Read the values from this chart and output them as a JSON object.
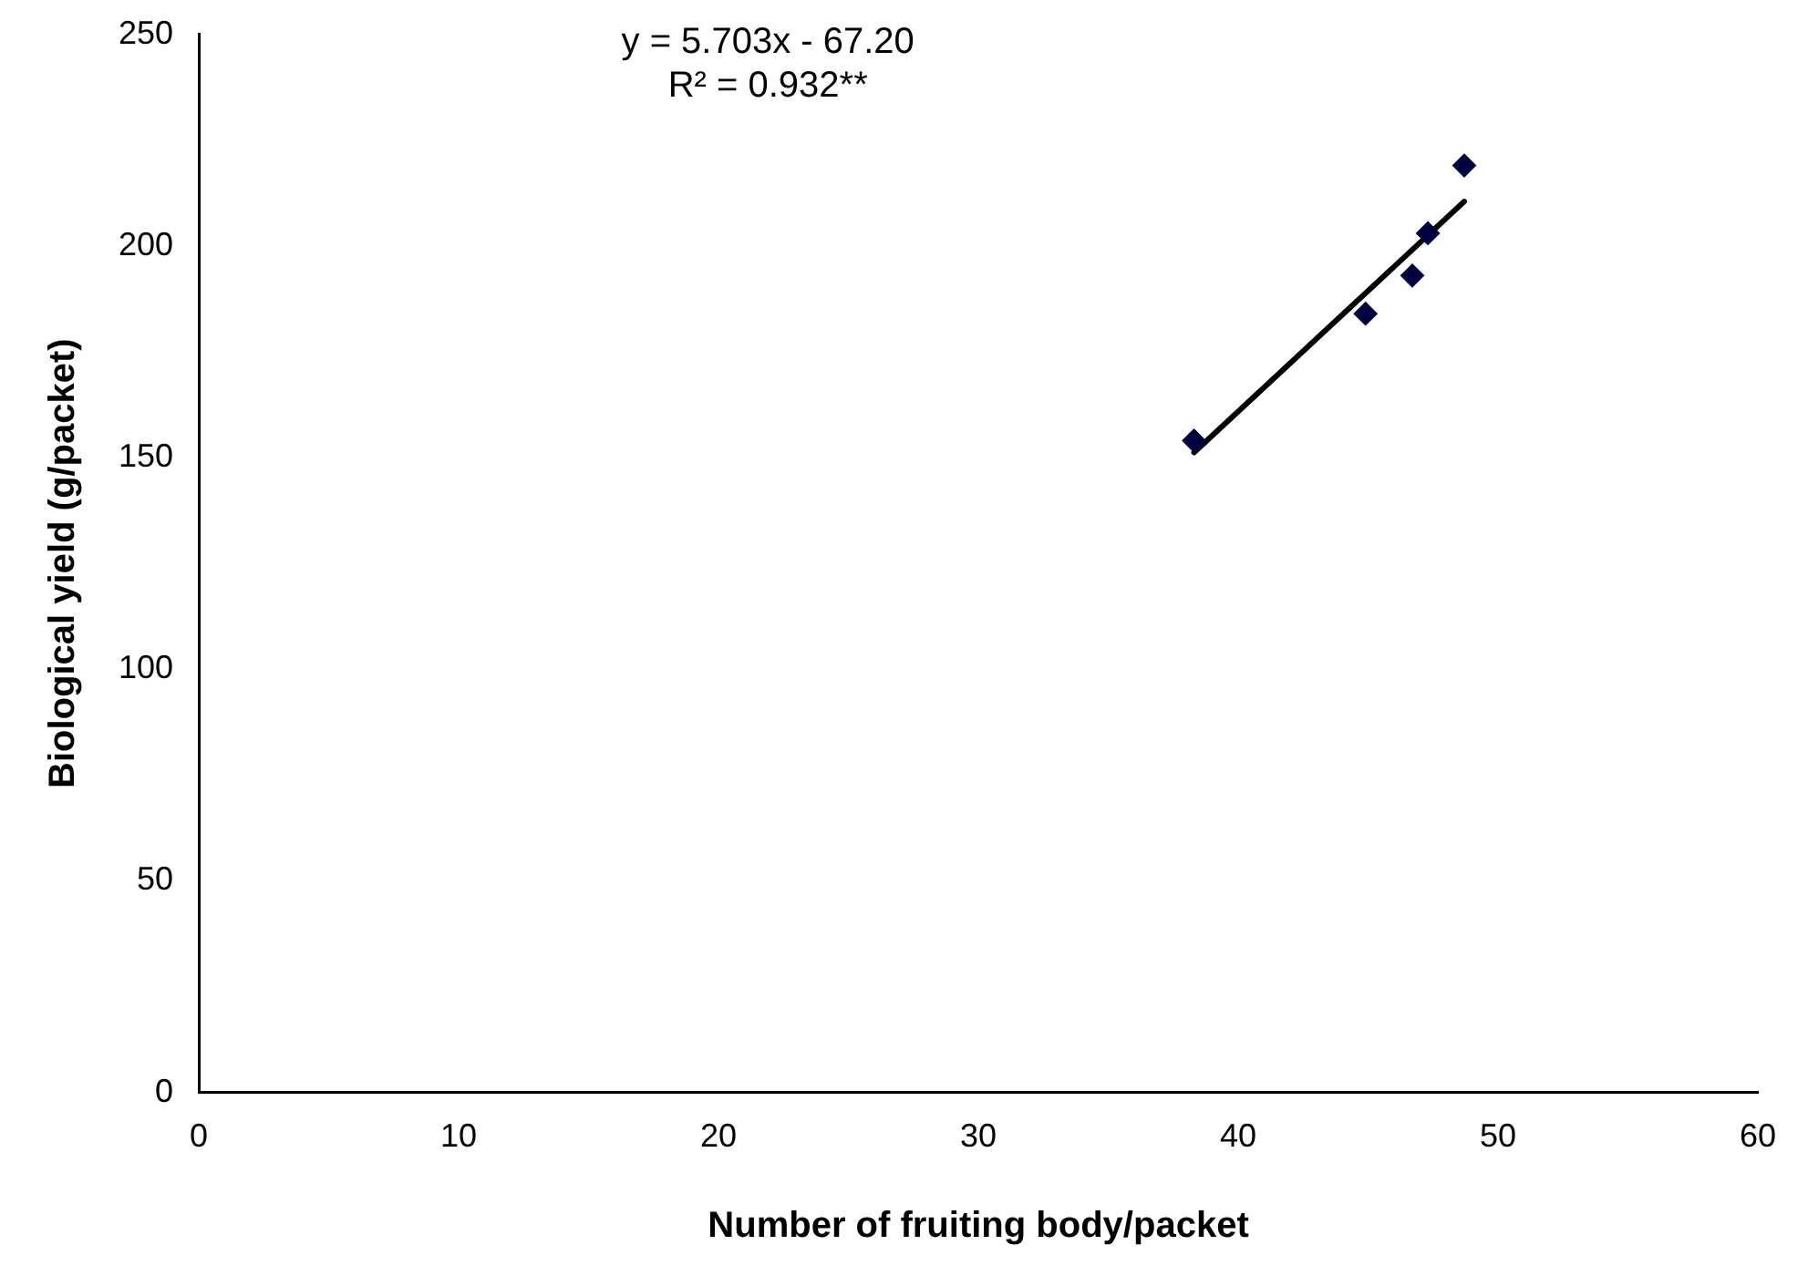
{
  "chart_data": {
    "type": "scatter",
    "xlabel": "Number of fruiting body/packet",
    "ylabel": "Biological yield (g/packet)",
    "x": [
      38.3,
      44.9,
      46.7,
      47.3,
      48.7
    ],
    "series": [
      {
        "type": "scatter",
        "color": "#000040",
        "values": [
          154,
          184,
          193,
          203,
          219
        ],
        "marker": "diamond"
      },
      {
        "type": "line",
        "color": "#000000",
        "x": [
          38.3,
          48.7
        ],
        "values": [
          151.2,
          210.5
        ],
        "marker": "none"
      }
    ],
    "xlim": [
      0,
      60
    ],
    "xticks": [
      0,
      10,
      20,
      30,
      40,
      50,
      60
    ],
    "ylim": [
      0,
      250
    ],
    "yticks": [
      0,
      50,
      100,
      150,
      200,
      250
    ],
    "annotations": [
      "y = 5.703x - 67.20",
      "R² = 0.932**"
    ],
    "grid": false,
    "legend": false
  }
}
